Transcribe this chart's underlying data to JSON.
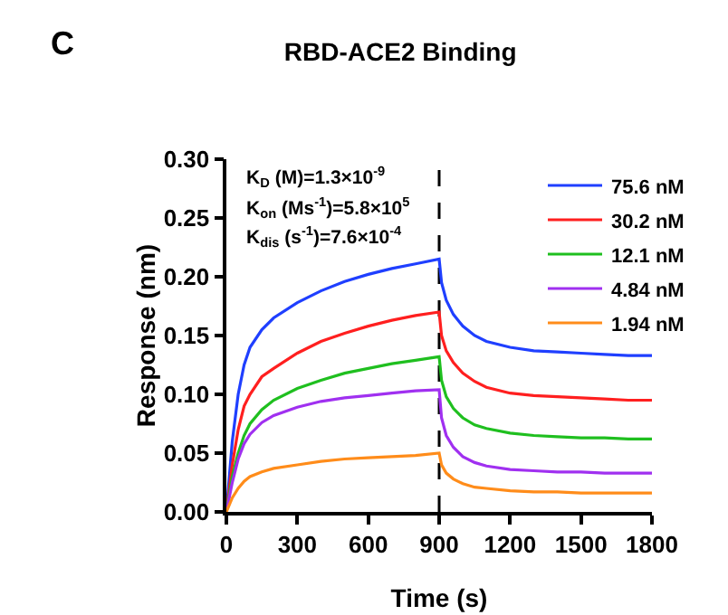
{
  "chart_data": {
    "type": "line",
    "title": "RBD-ACE2 Binding",
    "xlabel": "Time (s)",
    "ylabel": "Response (nm)",
    "x": [
      0,
      25,
      50,
      75,
      100,
      150,
      200,
      300,
      400,
      500,
      600,
      700,
      800,
      900,
      910,
      930,
      960,
      1000,
      1050,
      1100,
      1200,
      1300,
      1400,
      1500,
      1600,
      1700,
      1800
    ],
    "series": [
      {
        "name": "75.6 nM",
        "color": "#1f3fff",
        "values": [
          0,
          0.06,
          0.1,
          0.125,
          0.14,
          0.155,
          0.165,
          0.178,
          0.188,
          0.196,
          0.202,
          0.207,
          0.211,
          0.215,
          0.195,
          0.18,
          0.168,
          0.158,
          0.15,
          0.145,
          0.14,
          0.137,
          0.136,
          0.135,
          0.134,
          0.133,
          0.133
        ]
      },
      {
        "name": "30.2 nM",
        "color": "#ff1f1f",
        "values": [
          0,
          0.04,
          0.07,
          0.09,
          0.1,
          0.115,
          0.122,
          0.135,
          0.145,
          0.152,
          0.158,
          0.163,
          0.167,
          0.17,
          0.15,
          0.137,
          0.127,
          0.118,
          0.111,
          0.106,
          0.101,
          0.099,
          0.098,
          0.097,
          0.096,
          0.095,
          0.095
        ]
      },
      {
        "name": "12.1 nM",
        "color": "#1fbf1f",
        "values": [
          0,
          0.03,
          0.05,
          0.065,
          0.075,
          0.087,
          0.095,
          0.105,
          0.112,
          0.118,
          0.122,
          0.126,
          0.129,
          0.132,
          0.112,
          0.098,
          0.088,
          0.08,
          0.074,
          0.071,
          0.067,
          0.065,
          0.064,
          0.063,
          0.063,
          0.062,
          0.062
        ]
      },
      {
        "name": "4.84 nM",
        "color": "#a030f0",
        "values": [
          0,
          0.025,
          0.045,
          0.058,
          0.066,
          0.076,
          0.082,
          0.089,
          0.094,
          0.097,
          0.099,
          0.101,
          0.103,
          0.104,
          0.08,
          0.065,
          0.055,
          0.047,
          0.042,
          0.039,
          0.036,
          0.035,
          0.034,
          0.034,
          0.033,
          0.033,
          0.033
        ]
      },
      {
        "name": "1.94 nM",
        "color": "#ff8c1a",
        "values": [
          0,
          0.012,
          0.02,
          0.026,
          0.03,
          0.034,
          0.037,
          0.04,
          0.043,
          0.045,
          0.046,
          0.047,
          0.048,
          0.05,
          0.04,
          0.033,
          0.028,
          0.024,
          0.021,
          0.02,
          0.018,
          0.017,
          0.017,
          0.016,
          0.016,
          0.016,
          0.016
        ]
      }
    ],
    "xlim": [
      0,
      1800
    ],
    "ylim": [
      0,
      0.3
    ],
    "xticks": [
      0,
      300,
      600,
      900,
      1200,
      1500,
      1800
    ],
    "yticks": [
      {
        "value": 0,
        "label": "0.00"
      },
      {
        "value": 0.05,
        "label": "0.05"
      },
      {
        "value": 0.1,
        "label": "0.10"
      },
      {
        "value": 0.15,
        "label": "0.15"
      },
      {
        "value": 0.2,
        "label": "0.20"
      },
      {
        "value": 0.25,
        "label": "0.25"
      },
      {
        "value": 0.3,
        "label": "0.30"
      }
    ],
    "ref_lines": [
      {
        "axis": "x",
        "value": 900,
        "color": "#000000",
        "line_style": "dashed"
      }
    ],
    "annotations": [
      "C",
      "K$_{D}$ (M)=1.3×10$^{-9}$",
      "K$_{on}$ (Ms$^{-1}$)=5.8×10$^{5}$",
      "K$_{dis}$ (s$^{-1}$)=7.6×10$^{-4}$"
    ],
    "legend": "top right"
  }
}
